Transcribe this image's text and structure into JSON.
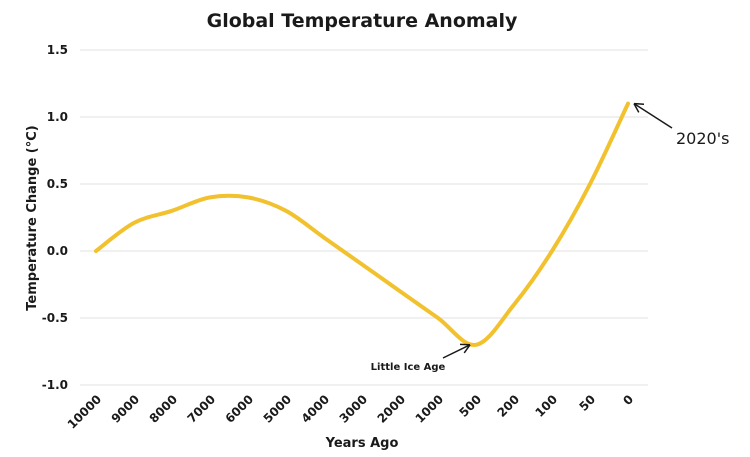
{
  "chart_data": {
    "type": "line",
    "title": "Global Temperature Anomaly",
    "xlabel": "Years Ago",
    "ylabel": "Temperature Change (°C)",
    "ylim": [
      -1.0,
      1.5
    ],
    "yticks": [
      "1.5",
      "1.0",
      "0.5",
      "0.0",
      "-0.5",
      "-1.0"
    ],
    "ytick_values": [
      1.5,
      1.0,
      0.5,
      0.0,
      -0.5,
      -1.0
    ],
    "categories": [
      "10000",
      "9000",
      "8000",
      "7000",
      "6000",
      "5000",
      "4000",
      "3000",
      "2000",
      "1000",
      "500",
      "200",
      "100",
      "50",
      "0"
    ],
    "grid": true,
    "series": [
      {
        "color": "#F2C12E",
        "values": [
          0.0,
          0.21,
          0.3,
          0.4,
          0.4,
          0.3,
          0.1,
          -0.1,
          -0.3,
          -0.5,
          -0.7,
          -0.4,
          0.0,
          0.5,
          1.1
        ]
      }
    ],
    "annotations": [
      {
        "text": "Little Ice Age",
        "category": "500",
        "value": -0.7
      },
      {
        "text": "2020's",
        "category": "0",
        "value": 1.1
      }
    ]
  }
}
